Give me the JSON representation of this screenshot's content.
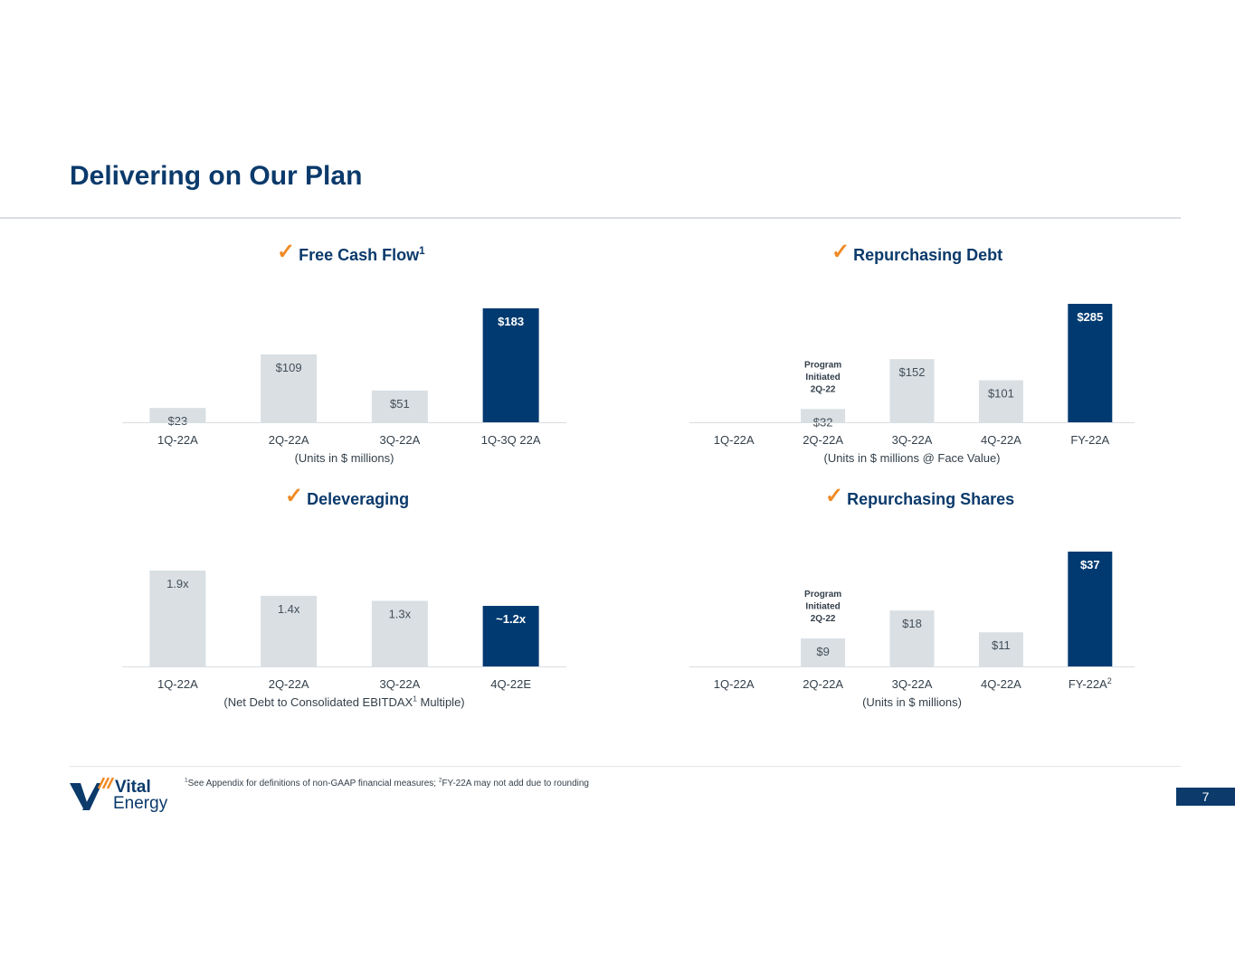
{
  "page": {
    "title": "Delivering on Our Plan",
    "page_number": "7",
    "footnote_part1": "See Appendix for definitions of non-GAAP financial measures; ",
    "footnote_part2": "FY-22A may not add due to rounding",
    "footnote_mark1": "1",
    "footnote_mark2": "2",
    "logo": {
      "line1": "Vital",
      "line2": "Energy"
    }
  },
  "colors": {
    "title": "#0b3a6b",
    "bar_actual": "#d9dfe3",
    "bar_highlight": "#003a70",
    "check": "#f08a24",
    "axis": "#d9dee2"
  },
  "chart_data": [
    {
      "id": "free-cash-flow",
      "type": "bar",
      "title": "Free Cash Flow",
      "title_sup": "1",
      "caption": "(Units in $ millions)",
      "categories": [
        "1Q-22A",
        "2Q-22A",
        "3Q-22A",
        "1Q-3Q 22A"
      ],
      "values": [
        23,
        109,
        51,
        183
      ],
      "labels": [
        "$23",
        "$109",
        "$51",
        "$183"
      ],
      "highlight": [
        false,
        false,
        false,
        true
      ],
      "ylim": [
        0,
        183
      ]
    },
    {
      "id": "repurchasing-debt",
      "type": "bar",
      "title": "Repurchasing Debt",
      "caption": "(Units in $ millions @ Face Value)",
      "categories": [
        "1Q-22A",
        "2Q-22A",
        "3Q-22A",
        "4Q-22A",
        "FY-22A"
      ],
      "values": [
        null,
        32,
        152,
        101,
        285
      ],
      "labels": [
        "",
        "$32",
        "$152",
        "$101",
        "$285"
      ],
      "highlight": [
        false,
        false,
        false,
        false,
        true
      ],
      "annotation": {
        "lines": [
          "Program",
          "Initiated",
          "2Q-22"
        ],
        "category": "2Q-22A"
      },
      "ylim": [
        0,
        285
      ]
    },
    {
      "id": "deleveraging",
      "type": "bar",
      "title": "Deleveraging",
      "caption_pre": "(Net Debt to Consolidated EBITDAX",
      "caption_sup": "1",
      "caption_post": " Multiple)",
      "categories": [
        "1Q-22A",
        "2Q-22A",
        "3Q-22A",
        "4Q-22E"
      ],
      "values": [
        1.9,
        1.4,
        1.3,
        1.2
      ],
      "labels": [
        "1.9x",
        "1.4x",
        "1.3x",
        "~1.2x"
      ],
      "highlight": [
        false,
        false,
        false,
        true
      ],
      "ylim": [
        0,
        1.9
      ]
    },
    {
      "id": "repurchasing-shares",
      "type": "bar",
      "title": "Repurchasing Shares",
      "caption": "(Units in $ millions)",
      "categories": [
        "1Q-22A",
        "2Q-22A",
        "3Q-22A",
        "4Q-22A",
        "FY-22A"
      ],
      "category_sup": [
        "",
        "",
        "",
        "",
        "2"
      ],
      "values": [
        null,
        9,
        18,
        11,
        37
      ],
      "labels": [
        "",
        "$9",
        "$18",
        "$11",
        "$37"
      ],
      "highlight": [
        false,
        false,
        false,
        false,
        true
      ],
      "annotation": {
        "lines": [
          "Program",
          "Initiated",
          "2Q-22"
        ],
        "category": "2Q-22A"
      },
      "ylim": [
        0,
        37
      ]
    }
  ]
}
